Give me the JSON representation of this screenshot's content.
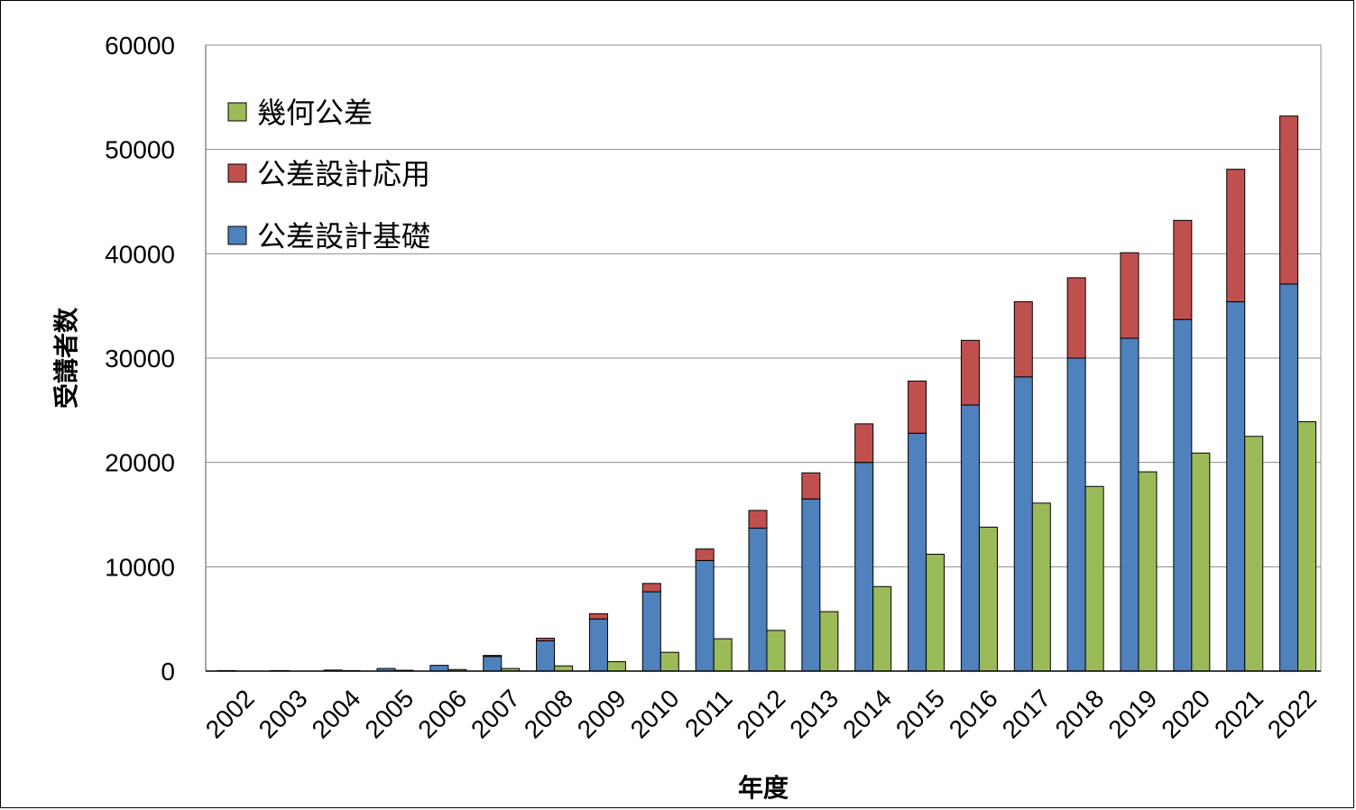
{
  "chart_data": {
    "type": "bar",
    "layout": "stacked + side-by-side",
    "xlabel": "年度",
    "ylabel": "受講者数",
    "ylim": [
      0,
      60000
    ],
    "yticks": [
      0,
      10000,
      20000,
      30000,
      40000,
      50000,
      60000
    ],
    "grid": true,
    "legend_position": "top-left",
    "categories": [
      "2002",
      "2003",
      "2004",
      "2005",
      "2006",
      "2007",
      "2008",
      "2009",
      "2010",
      "2011",
      "2012",
      "2013",
      "2014",
      "2015",
      "2016",
      "2017",
      "2018",
      "2019",
      "2020",
      "2021",
      "2022"
    ],
    "series": [
      {
        "name": "幾何公差",
        "color": "#9bbb59",
        "stack": "geometric",
        "values": [
          0,
          0,
          50,
          80,
          150,
          250,
          500,
          900,
          1800,
          3100,
          3900,
          5700,
          8100,
          11200,
          13800,
          16100,
          17700,
          19100,
          20900,
          22500,
          23900
        ]
      },
      {
        "name": "公差設計基礎",
        "color": "#4f81bd",
        "stack": "design",
        "values": [
          50,
          50,
          100,
          250,
          550,
          1400,
          2900,
          5000,
          7600,
          10600,
          13700,
          16500,
          20000,
          22800,
          25500,
          28200,
          30000,
          31900,
          33700,
          35400,
          37100
        ]
      },
      {
        "name": "公差設計応用",
        "color": "#c0504d",
        "stack": "design",
        "values": [
          0,
          0,
          0,
          0,
          0,
          100,
          250,
          500,
          800,
          1100,
          1700,
          2500,
          3700,
          5000,
          6200,
          7200,
          7700,
          8200,
          9500,
          12700,
          16100
        ]
      }
    ],
    "legend_order": [
      0,
      2,
      1
    ]
  }
}
